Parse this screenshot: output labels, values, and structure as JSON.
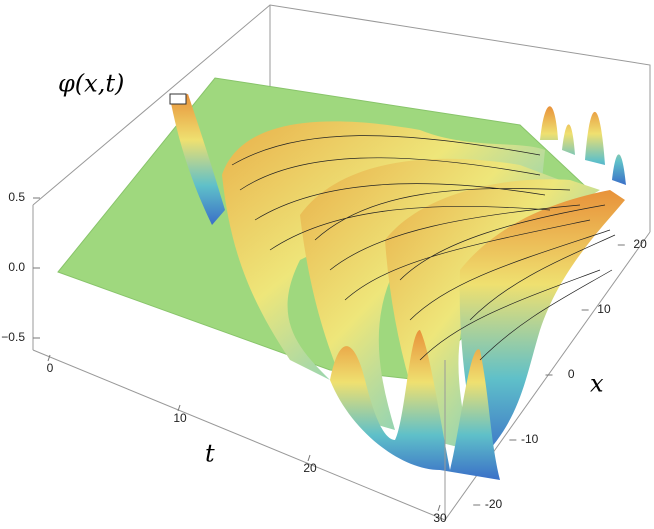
{
  "chart_data": {
    "type": "surface3d",
    "z_label": "φ(x,t)",
    "t_label": "t",
    "x_label": "x",
    "tlim": [
      0,
      30
    ],
    "tticks": [
      0,
      10,
      20,
      30
    ],
    "xlim": [
      -22,
      22
    ],
    "xticks": [
      -20,
      -10,
      0,
      10,
      20
    ],
    "zlim": [
      -0.6,
      0.6
    ],
    "zticks": [
      0.5,
      {
        "value": 0,
        "label": "0.0"
      },
      {
        "value": -0.5,
        "label": "−0.5"
      }
    ]
  }
}
